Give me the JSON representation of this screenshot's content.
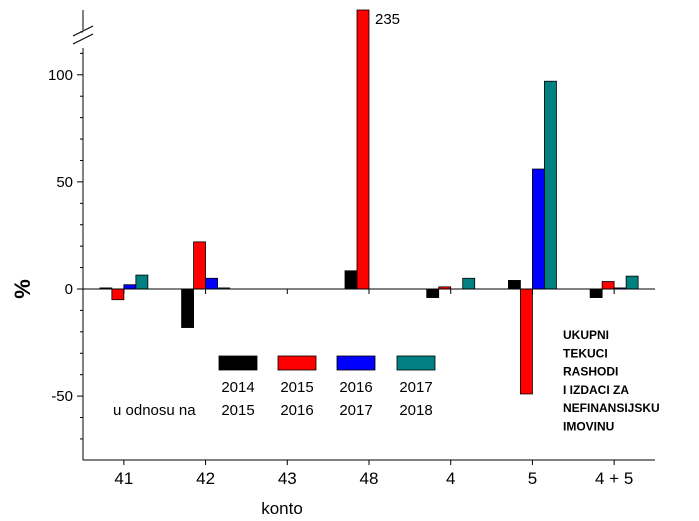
{
  "chart_data": {
    "type": "bar",
    "ylabel": "%",
    "xlabel": "konto",
    "categories": [
      "41",
      "42",
      "43",
      "48",
      "4",
      "5",
      "4 + 5"
    ],
    "ylim": [
      -80,
      130
    ],
    "y_ticks": [
      -50,
      0,
      50,
      100
    ],
    "y_tick_labels": [
      "-50",
      "0",
      "50",
      "100"
    ],
    "axis_break": true,
    "series": [
      {
        "name_top": "2014",
        "name_bottom": "2015",
        "color": "#000000",
        "values": [
          0.5,
          -18,
          0,
          8.5,
          -4,
          4,
          -4
        ]
      },
      {
        "name_top": "2015",
        "name_bottom": "2016",
        "color": "#ff0000",
        "values": [
          -5,
          22,
          0,
          235,
          1,
          -49,
          3.5
        ]
      },
      {
        "name_top": "2016",
        "name_bottom": "2017",
        "color": "#0000ff",
        "values": [
          2,
          5,
          0,
          0,
          0,
          56,
          0.5
        ]
      },
      {
        "name_top": "2017",
        "name_bottom": "2018",
        "color": "#008080",
        "values": [
          6.5,
          0.5,
          0,
          0,
          5,
          97,
          6
        ]
      }
    ],
    "bar_value_label": "235",
    "legend_prefix": "u odnosu na",
    "annotation_lines": [
      "UKUPNI",
      "TEKUCI",
      "RASHODI",
      "I IZDACI ZA",
      "NEFINANSIJSKU",
      "IMOVINU"
    ]
  }
}
